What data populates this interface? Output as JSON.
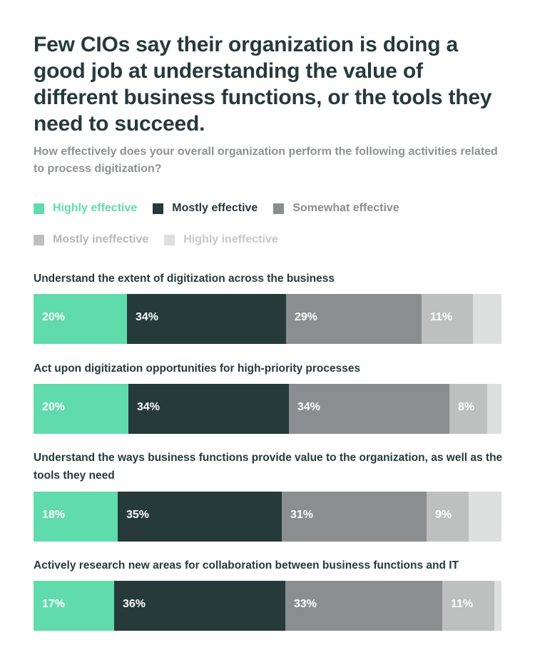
{
  "title": "Few CIOs say their organization is doing a good job at understanding the value of different business functions, or the tools they need to succeed.",
  "subtitle": "How effectively does your overall organization perform the following activities related to process digitization?",
  "chart_data": {
    "type": "bar",
    "orientation": "horizontal",
    "stacked": true,
    "unit": "%",
    "categories": [
      "Understand the extent of digitization across the business",
      "Act upon digitization opportunities for high-priority processes",
      "Understand the ways business functions provide value to the organization, as well as the tools they need",
      "Actively research new areas for collaboration between business functions and IT"
    ],
    "series": [
      {
        "name": "Highly effective",
        "color": "#60dbab",
        "text_color": "#60dbab",
        "values": [
          20,
          20,
          18,
          17
        ],
        "labels": [
          "20%",
          "20%",
          "18%",
          "17%"
        ]
      },
      {
        "name": "Mostly effective",
        "color": "#263a3a",
        "text_color": "#263a3a",
        "values": [
          34,
          34,
          35,
          36
        ],
        "labels": [
          "34%",
          "34%",
          "35%",
          "36%"
        ]
      },
      {
        "name": "Somewhat effective",
        "color": "#8b8e8f",
        "text_color": "#8b8e8f",
        "values": [
          29,
          34,
          31,
          33
        ],
        "labels": [
          "29%",
          "34%",
          "31%",
          "33%"
        ]
      },
      {
        "name": "Mostly ineffective",
        "color": "#bebfbf",
        "text_color": "#b6b8b8",
        "values": [
          11,
          8,
          9,
          11
        ],
        "labels": [
          "11%",
          "8%",
          "9%",
          "11%"
        ]
      },
      {
        "name": "Highly ineffective",
        "color": "#dedfdf",
        "text_color": "#c6c8c8",
        "values": [
          6,
          3,
          7,
          1.5
        ],
        "labels": [
          "",
          "",
          "",
          ""
        ]
      }
    ],
    "legend_position": "top-left",
    "grid": false
  }
}
